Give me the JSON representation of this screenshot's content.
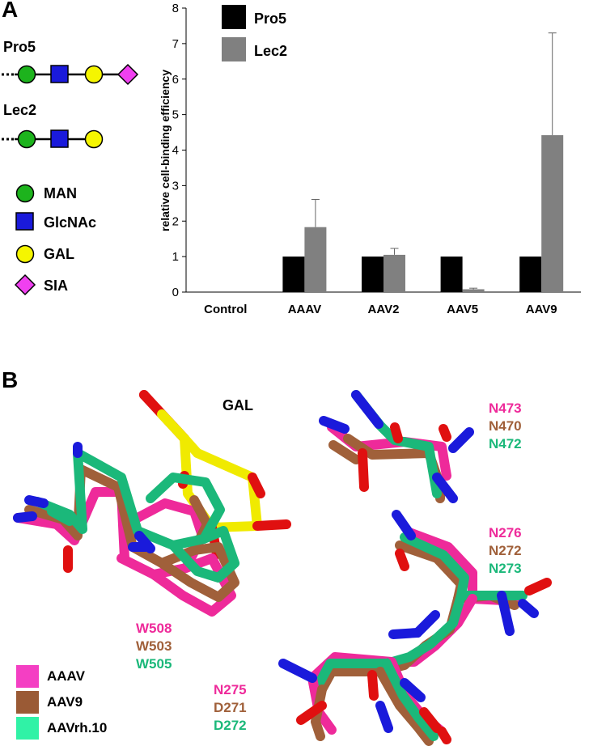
{
  "panel_a": {
    "letter": "A",
    "glycans": [
      {
        "name": "Pro5",
        "units": [
          "MAN",
          "GlcNAc",
          "GAL",
          "SIA"
        ]
      },
      {
        "name": "Lec2",
        "units": [
          "MAN",
          "GlcNAc",
          "GAL"
        ]
      }
    ],
    "symbol_legend": [
      {
        "label": "MAN",
        "shape": "circle",
        "color": "#1db31d"
      },
      {
        "label": "GlcNAc",
        "shape": "square",
        "color": "#1a1adb"
      },
      {
        "label": "GAL",
        "shape": "circle",
        "color": "#f5f500"
      },
      {
        "label": "SIA",
        "shape": "diamond",
        "color": "#f040f0"
      }
    ]
  },
  "chart_data": {
    "type": "bar",
    "categories": [
      "Control",
      "AAAV",
      "AAV2",
      "AAV5",
      "AAV9"
    ],
    "series": [
      {
        "name": "Pro5",
        "color": "#000000",
        "values": [
          0,
          1,
          1,
          1,
          1
        ],
        "errors": [
          0,
          0,
          0,
          0,
          0
        ]
      },
      {
        "name": "Lec2",
        "color": "#808080",
        "values": [
          0,
          1.83,
          1.05,
          0.08,
          4.42
        ],
        "errors": [
          0,
          0.78,
          0.18,
          0.03,
          2.88
        ]
      }
    ],
    "ylabel": "relative cell-binding efficiency",
    "xlabel": "",
    "ylim": [
      0,
      8
    ],
    "yticks": [
      "0",
      "1",
      "2",
      "3",
      "4",
      "5",
      "6",
      "7",
      "8"
    ],
    "legend_placement": "top-left",
    "grid": false
  },
  "panel_b": {
    "letter": "B",
    "ligand_label": "GAL",
    "residue_groups": [
      {
        "labels": [
          "N473",
          "N470",
          "N472"
        ]
      },
      {
        "labels": [
          "N276",
          "N272",
          "N273"
        ]
      },
      {
        "labels": [
          "W508",
          "W503",
          "W505"
        ]
      },
      {
        "labels": [
          "N275",
          "D271",
          "D272"
        ]
      }
    ],
    "residue_colors": [
      "#ee2a9a",
      "#a0603a",
      "#1bb87a"
    ],
    "molecule_legend": [
      {
        "label": "AAAV",
        "color": "#f43fc3"
      },
      {
        "label": "AAV9",
        "color": "#9a5a35"
      },
      {
        "label": "AAVrh.10",
        "color": "#30f2a6"
      }
    ]
  }
}
